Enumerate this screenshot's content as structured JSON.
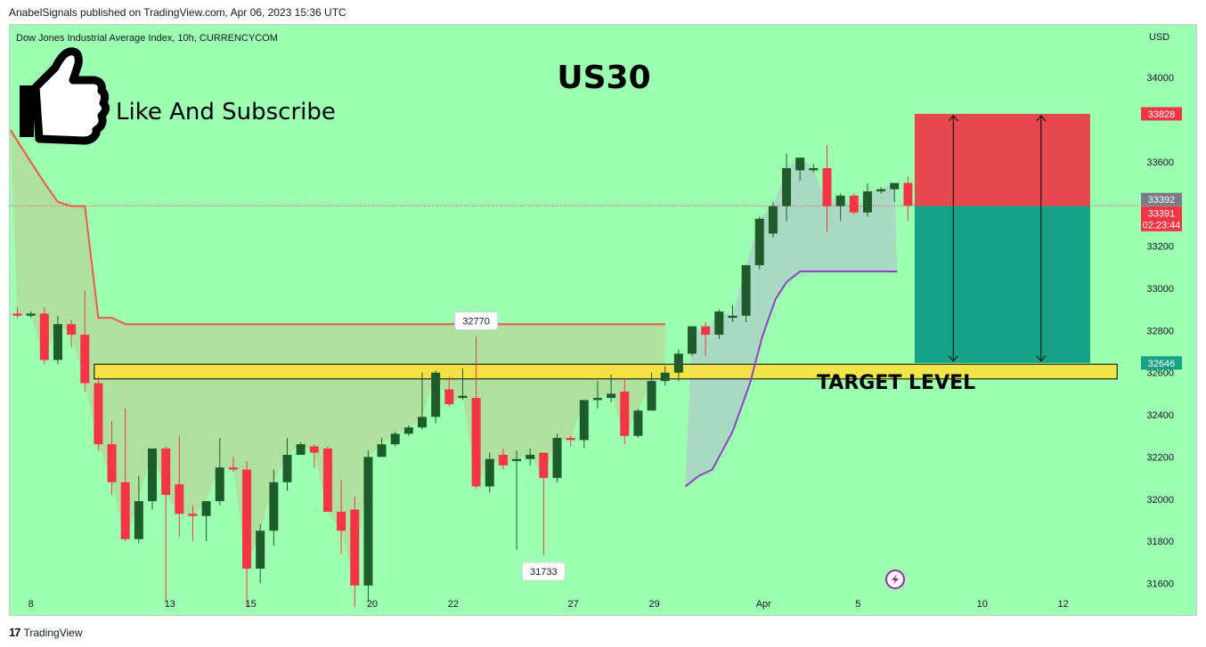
{
  "header": {
    "publisher_line": "AnabelSignals published on TradingView.com, Apr 06, 2023 15:36 UTC"
  },
  "footer": {
    "brand": "TradingView",
    "logo_glyph": "17"
  },
  "colors": {
    "background": "#9dffb2",
    "bull": "#1e5c2c",
    "bear": "#f23645",
    "stop_zone": "#e5484f",
    "target_zone": "#16a287",
    "target_band": "#ffe135",
    "trail_red": "#f0584b",
    "trail_purple": "#8e44c2"
  },
  "chart_data": {
    "type": "candlestick",
    "symbol": "Dow Jones Industrial Average Index, 10h, CURRENCYCOM",
    "title": "US30",
    "overlay_text": "Like And Subscribe",
    "target_label": "TARGET LEVEL",
    "currency": "USD",
    "ylim": [
      31450,
      34250
    ],
    "y_ticks": [
      34000,
      33600,
      33200,
      33000,
      32800,
      32600,
      32400,
      32200,
      32000,
      31800,
      31600
    ],
    "x_ticks": [
      {
        "label": "8",
        "index": 1
      },
      {
        "label": "13",
        "index": 11.3
      },
      {
        "label": "15",
        "index": 17.3
      },
      {
        "label": "20",
        "index": 26.3
      },
      {
        "label": "22",
        "index": 32.3
      },
      {
        "label": "27",
        "index": 41.2
      },
      {
        "label": "29",
        "index": 47.2
      },
      {
        "label": "Apr",
        "index": 55.3
      },
      {
        "label": "5",
        "index": 62.3
      },
      {
        "label": "10",
        "index": 71.5
      },
      {
        "label": "12",
        "index": 77.5
      }
    ],
    "candles": [
      {
        "o": 32880,
        "h": 32910,
        "l": 32860,
        "c": 32870
      },
      {
        "o": 32870,
        "h": 32890,
        "l": 32860,
        "c": 32880
      },
      {
        "o": 32880,
        "h": 32910,
        "l": 32640,
        "c": 32660
      },
      {
        "o": 32660,
        "h": 32870,
        "l": 32640,
        "c": 32830
      },
      {
        "o": 32830,
        "h": 32850,
        "l": 32720,
        "c": 32780
      },
      {
        "o": 32780,
        "h": 32990,
        "l": 32510,
        "c": 32550
      },
      {
        "o": 32550,
        "h": 32580,
        "l": 32230,
        "c": 32260
      },
      {
        "o": 32260,
        "h": 32370,
        "l": 32020,
        "c": 32080
      },
      {
        "o": 32080,
        "h": 32430,
        "l": 31800,
        "c": 31810
      },
      {
        "o": 31810,
        "h": 32110,
        "l": 31790,
        "c": 31990
      },
      {
        "o": 31990,
        "h": 32240,
        "l": 31950,
        "c": 32240
      },
      {
        "o": 32240,
        "h": 32250,
        "l": 31510,
        "c": 32020
      },
      {
        "o": 32070,
        "h": 32300,
        "l": 31820,
        "c": 31930
      },
      {
        "o": 31930,
        "h": 31970,
        "l": 31800,
        "c": 31920
      },
      {
        "o": 31920,
        "h": 31990,
        "l": 31800,
        "c": 31990
      },
      {
        "o": 31990,
        "h": 32290,
        "l": 31970,
        "c": 32150
      },
      {
        "o": 32150,
        "h": 32200,
        "l": 32130,
        "c": 32140
      },
      {
        "o": 32140,
        "h": 32180,
        "l": 31490,
        "c": 31670
      },
      {
        "o": 31670,
        "h": 31880,
        "l": 31600,
        "c": 31850
      },
      {
        "o": 31850,
        "h": 32140,
        "l": 31780,
        "c": 32080
      },
      {
        "o": 32080,
        "h": 32290,
        "l": 32040,
        "c": 32210
      },
      {
        "o": 32210,
        "h": 32270,
        "l": 32210,
        "c": 32260
      },
      {
        "o": 32250,
        "h": 32260,
        "l": 32150,
        "c": 32220
      },
      {
        "o": 32240,
        "h": 32250,
        "l": 31940,
        "c": 31940
      },
      {
        "o": 31940,
        "h": 32090,
        "l": 31740,
        "c": 31850
      },
      {
        "o": 31950,
        "h": 32010,
        "l": 31490,
        "c": 31590
      },
      {
        "o": 31590,
        "h": 32230,
        "l": 31510,
        "c": 32200
      },
      {
        "o": 32200,
        "h": 32290,
        "l": 32220,
        "c": 32260
      },
      {
        "o": 32260,
        "h": 32320,
        "l": 32250,
        "c": 32310
      },
      {
        "o": 32310,
        "h": 32350,
        "l": 32300,
        "c": 32340
      },
      {
        "o": 32340,
        "h": 32600,
        "l": 32330,
        "c": 32390
      },
      {
        "o": 32390,
        "h": 32610,
        "l": 32360,
        "c": 32600
      },
      {
        "o": 32520,
        "h": 32580,
        "l": 32440,
        "c": 32450
      },
      {
        "o": 32480,
        "h": 32620,
        "l": 32470,
        "c": 32490
      },
      {
        "o": 32480,
        "h": 32770,
        "l": 32050,
        "c": 32060
      },
      {
        "o": 32060,
        "h": 32220,
        "l": 32030,
        "c": 32190
      },
      {
        "o": 32210,
        "h": 32240,
        "l": 32140,
        "c": 32160
      },
      {
        "o": 32180,
        "h": 32230,
        "l": 31760,
        "c": 32190
      },
      {
        "o": 32190,
        "h": 32240,
        "l": 32160,
        "c": 32210
      },
      {
        "o": 32220,
        "h": 32220,
        "l": 31733,
        "c": 32100
      },
      {
        "o": 32100,
        "h": 32310,
        "l": 32080,
        "c": 32290
      },
      {
        "o": 32290,
        "h": 32300,
        "l": 32250,
        "c": 32280
      },
      {
        "o": 32280,
        "h": 32460,
        "l": 32240,
        "c": 32470
      },
      {
        "o": 32470,
        "h": 32560,
        "l": 32430,
        "c": 32480
      },
      {
        "o": 32480,
        "h": 32590,
        "l": 32460,
        "c": 32500
      },
      {
        "o": 32510,
        "h": 32570,
        "l": 32260,
        "c": 32300
      },
      {
        "o": 32300,
        "h": 32430,
        "l": 32290,
        "c": 32420
      },
      {
        "o": 32420,
        "h": 32600,
        "l": 32420,
        "c": 32560
      },
      {
        "o": 32560,
        "h": 32630,
        "l": 32540,
        "c": 32600
      },
      {
        "o": 32600,
        "h": 32710,
        "l": 32560,
        "c": 32690
      },
      {
        "o": 32690,
        "h": 32820,
        "l": 32680,
        "c": 32820
      },
      {
        "o": 32820,
        "h": 32840,
        "l": 32680,
        "c": 32780
      },
      {
        "o": 32780,
        "h": 32900,
        "l": 32760,
        "c": 32890
      },
      {
        "o": 32860,
        "h": 32920,
        "l": 32840,
        "c": 32870
      },
      {
        "o": 32870,
        "h": 33110,
        "l": 32840,
        "c": 33110
      },
      {
        "o": 33110,
        "h": 33340,
        "l": 33090,
        "c": 33330
      },
      {
        "o": 33260,
        "h": 33410,
        "l": 33240,
        "c": 33390
      },
      {
        "o": 33390,
        "h": 33640,
        "l": 33320,
        "c": 33570
      },
      {
        "o": 33560,
        "h": 33620,
        "l": 33510,
        "c": 33620
      },
      {
        "o": 33560,
        "h": 33590,
        "l": 33550,
        "c": 33570
      },
      {
        "o": 33570,
        "h": 33680,
        "l": 33270,
        "c": 33390
      },
      {
        "o": 33390,
        "h": 33450,
        "l": 33320,
        "c": 33440
      },
      {
        "o": 33440,
        "h": 33450,
        "l": 33350,
        "c": 33360
      },
      {
        "o": 33360,
        "h": 33500,
        "l": 33340,
        "c": 33460
      },
      {
        "o": 33460,
        "h": 33480,
        "l": 33450,
        "c": 33470
      },
      {
        "o": 33470,
        "h": 33500,
        "l": 33410,
        "c": 33500
      },
      {
        "o": 33500,
        "h": 33530,
        "l": 33320,
        "c": 33392
      }
    ],
    "markers": [
      {
        "label": "32770",
        "index": 34,
        "value": 32770,
        "position": "above"
      },
      {
        "label": "31733",
        "index": 39,
        "value": 31733,
        "position": "below"
      }
    ],
    "trail_red": [
      [
        -0.5,
        33750
      ],
      [
        1,
        33600
      ],
      [
        2,
        33500
      ],
      [
        3,
        33410
      ],
      [
        4,
        33390
      ],
      [
        5,
        33390
      ],
      [
        6,
        32860
      ],
      [
        7,
        32860
      ],
      [
        8,
        32830
      ],
      [
        48,
        32830
      ]
    ],
    "trail_purple": [
      [
        49.5,
        32060
      ],
      [
        50.5,
        32110
      ],
      [
        51.5,
        32140
      ],
      [
        53,
        32320
      ],
      [
        54.3,
        32550
      ],
      [
        55.2,
        32770
      ],
      [
        56.2,
        32950
      ],
      [
        57,
        33030
      ],
      [
        58,
        33080
      ],
      [
        64,
        33080
      ],
      [
        65.2,
        33080
      ]
    ],
    "target_band": {
      "low": 32570,
      "high": 32640,
      "from_index": 5.7,
      "to_index": 81.5
    },
    "position": {
      "entry": 33391,
      "stop": 33828,
      "target": 32646,
      "from_index": 66.5,
      "to_index": 79.5
    },
    "price_labels": [
      {
        "label": "33828",
        "value": 33828,
        "color": "#f23645"
      },
      {
        "label": "33392",
        "value": 33392,
        "color": "#787b86"
      },
      {
        "label": "33391",
        "value": 33391,
        "color": "#f23645",
        "sub": "02:23:44"
      },
      {
        "label": "32646",
        "value": 32646,
        "color": "#16a287"
      }
    ]
  }
}
